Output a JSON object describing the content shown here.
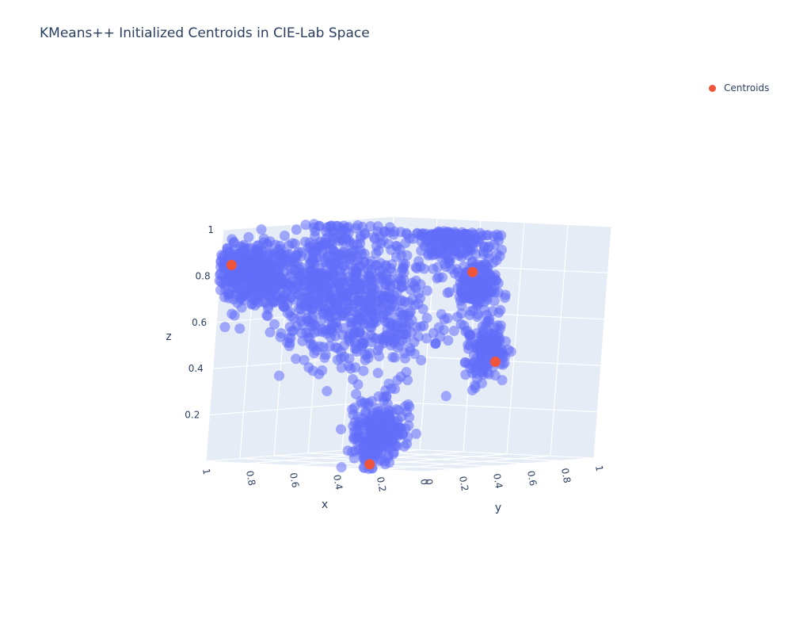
{
  "chart_data": {
    "type": "scatter",
    "dimensions": 3,
    "title": "KMeans++ Initialized Centroids in CIE-Lab Space",
    "xlabel": "x",
    "ylabel": "y",
    "zlabel": "z",
    "xlim": [
      0,
      1
    ],
    "ylim": [
      0,
      1
    ],
    "zlim": [
      0,
      1
    ],
    "x_ticks": [
      "1",
      "0.8",
      "0.6",
      "0.4",
      "0.2",
      "0"
    ],
    "y_ticks": [
      "0",
      "0.2",
      "0.4",
      "0.6",
      "0.8",
      "1"
    ],
    "z_ticks": [
      "0.2",
      "0.4",
      "0.6",
      "0.8",
      "1"
    ],
    "grid": true,
    "background_color": "#E5ECF6",
    "legend_position": "top-right",
    "series": [
      {
        "trace": "data-points",
        "color": "#636EFA",
        "opacity": 0.55,
        "clusters": [
          {
            "center": [
              0.88,
              0.02,
              0.82
            ],
            "spread": [
              0.08,
              0.04,
              0.06
            ],
            "count": 380
          },
          {
            "center": [
              0.55,
              0.05,
              0.78
            ],
            "spread": [
              0.18,
              0.06,
              0.09
            ],
            "count": 460
          },
          {
            "center": [
              0.18,
              0.3,
              0.97
            ],
            "spread": [
              0.1,
              0.06,
              0.05
            ],
            "count": 200
          },
          {
            "center": [
              0.78,
              0.42,
              0.95
            ],
            "spread": [
              0.1,
              0.05,
              0.05
            ],
            "count": 90
          },
          {
            "center": [
              0.03,
              0.28,
              0.78
            ],
            "spread": [
              0.03,
              0.05,
              0.06
            ],
            "count": 160
          },
          {
            "center": [
              0.03,
              0.36,
              0.5
            ],
            "spread": [
              0.03,
              0.06,
              0.06
            ],
            "count": 150
          },
          {
            "center": [
              0.25,
              0.03,
              0.15
            ],
            "spread": [
              0.06,
              0.04,
              0.07
            ],
            "count": 240
          },
          {
            "center": [
              0.45,
              0.18,
              0.6
            ],
            "spread": [
              0.18,
              0.1,
              0.12
            ],
            "count": 300
          }
        ]
      },
      {
        "name": "Centroids",
        "color": "#EF553B",
        "x": [
          0.95,
          0.0,
          0.02,
          0.25
        ],
        "y": [
          0.0,
          0.2,
          0.4,
          0.0
        ],
        "z": [
          0.85,
          0.85,
          0.45,
          0.02
        ]
      }
    ]
  }
}
